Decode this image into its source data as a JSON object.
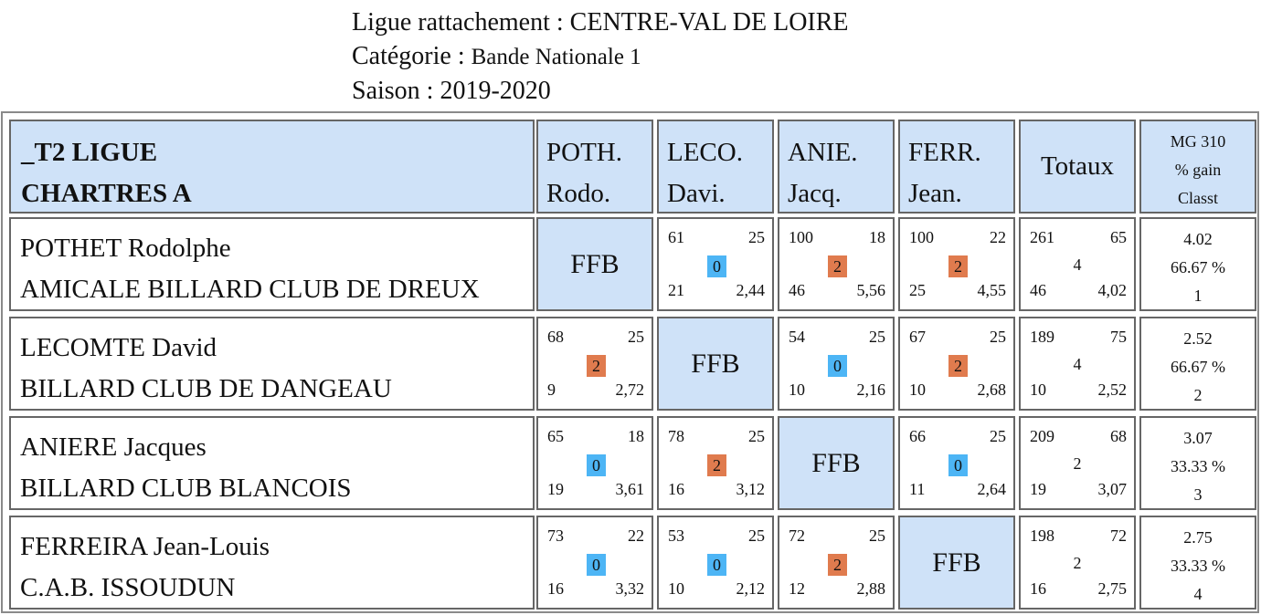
{
  "header": {
    "ligue_label": "Ligue rattachement : ",
    "ligue_value": "CENTRE-VAL DE LOIRE",
    "categorie_label": "Catégorie : ",
    "categorie_value": "Bande Nationale 1",
    "saison_label": "Saison : ",
    "saison_value": "2019-2020"
  },
  "table": {
    "team_line1": "_T2 LIGUE",
    "team_line2": "CHARTRES A",
    "columns": [
      {
        "l1": "POTH.",
        "l2": "Rodo."
      },
      {
        "l1": "LECO.",
        "l2": "Davi."
      },
      {
        "l1": "ANIE.",
        "l2": "Jacq."
      },
      {
        "l1": "FERR.",
        "l2": "Jean."
      }
    ],
    "totaux_label": "Totaux",
    "mg_l1": "MG 310",
    "mg_l2": "% gain",
    "mg_l3": "Classt",
    "ffb_label": "FFB",
    "rows": [
      {
        "name": "POTHET Rodolphe",
        "club": "AMICALE BILLARD CLUB DE DREUX",
        "cells": [
          null,
          {
            "tl": "61",
            "tr": "25",
            "pts": "0",
            "bl": "21",
            "br": "2,44"
          },
          {
            "tl": "100",
            "tr": "18",
            "pts": "2",
            "bl": "46",
            "br": "5,56"
          },
          {
            "tl": "100",
            "tr": "22",
            "pts": "2",
            "bl": "25",
            "br": "4,55"
          }
        ],
        "tot": {
          "tl": "261",
          "tr": "65",
          "mid": "4",
          "bl": "46",
          "br": "4,02"
        },
        "mg": {
          "l1": "4.02",
          "l2": "66.67 %",
          "l3": "1"
        }
      },
      {
        "name": "LECOMTE David",
        "club": "BILLARD CLUB DE DANGEAU",
        "cells": [
          {
            "tl": "68",
            "tr": "25",
            "pts": "2",
            "bl": "9",
            "br": "2,72"
          },
          null,
          {
            "tl": "54",
            "tr": "25",
            "pts": "0",
            "bl": "10",
            "br": "2,16"
          },
          {
            "tl": "67",
            "tr": "25",
            "pts": "2",
            "bl": "10",
            "br": "2,68"
          }
        ],
        "tot": {
          "tl": "189",
          "tr": "75",
          "mid": "4",
          "bl": "10",
          "br": "2,52"
        },
        "mg": {
          "l1": "2.52",
          "l2": "66.67 %",
          "l3": "2"
        }
      },
      {
        "name": "ANIERE Jacques",
        "club": "BILLARD CLUB BLANCOIS",
        "cells": [
          {
            "tl": "65",
            "tr": "18",
            "pts": "0",
            "bl": "19",
            "br": "3,61"
          },
          {
            "tl": "78",
            "tr": "25",
            "pts": "2",
            "bl": "16",
            "br": "3,12"
          },
          null,
          {
            "tl": "66",
            "tr": "25",
            "pts": "0",
            "bl": "11",
            "br": "2,64"
          }
        ],
        "tot": {
          "tl": "209",
          "tr": "68",
          "mid": "2",
          "bl": "19",
          "br": "3,07"
        },
        "mg": {
          "l1": "3.07",
          "l2": "33.33 %",
          "l3": "3"
        }
      },
      {
        "name": "FERREIRA Jean-Louis",
        "club": "C.A.B. ISSOUDUN",
        "cells": [
          {
            "tl": "73",
            "tr": "22",
            "pts": "0",
            "bl": "16",
            "br": "3,32"
          },
          {
            "tl": "53",
            "tr": "25",
            "pts": "0",
            "bl": "10",
            "br": "2,12"
          },
          {
            "tl": "72",
            "tr": "25",
            "pts": "2",
            "bl": "12",
            "br": "2,88"
          },
          null
        ],
        "tot": {
          "tl": "198",
          "tr": "72",
          "mid": "2",
          "bl": "16",
          "br": "2,75"
        },
        "mg": {
          "l1": "2.75",
          "l2": "33.33 %",
          "l3": "4"
        }
      }
    ]
  },
  "colors": {
    "header_bg": "#cfe2f8",
    "zero_badge": "#4db5f5",
    "two_badge": "#e07b4e"
  }
}
